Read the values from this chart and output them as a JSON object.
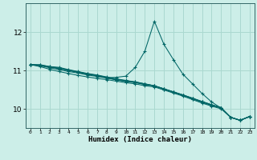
{
  "xlabel": "Humidex (Indice chaleur)",
  "ylabel": "",
  "background_color": "#cceee8",
  "grid_color": "#aad8d0",
  "line_color": "#006666",
  "xlim": [
    -0.5,
    23.5
  ],
  "ylim": [
    9.5,
    12.75
  ],
  "yticks": [
    10,
    11,
    12
  ],
  "xticks": [
    0,
    1,
    2,
    3,
    4,
    5,
    6,
    7,
    8,
    9,
    10,
    11,
    12,
    13,
    14,
    15,
    16,
    17,
    18,
    19,
    20,
    21,
    22,
    23
  ],
  "series": [
    [
      11.15,
      11.15,
      11.1,
      11.08,
      11.02,
      10.97,
      10.92,
      10.88,
      10.83,
      10.78,
      10.74,
      10.7,
      10.65,
      10.6,
      10.52,
      10.44,
      10.36,
      10.27,
      10.19,
      10.1,
      10.03,
      9.78,
      9.7,
      9.8
    ],
    [
      11.15,
      11.14,
      11.1,
      11.06,
      11.01,
      10.96,
      10.91,
      10.87,
      10.82,
      10.77,
      10.73,
      10.7,
      10.65,
      10.6,
      10.52,
      10.44,
      10.36,
      10.28,
      10.19,
      10.11,
      10.03,
      9.78,
      9.7,
      9.8
    ],
    [
      11.15,
      11.13,
      11.09,
      11.05,
      11.0,
      10.95,
      10.9,
      10.86,
      10.81,
      10.76,
      10.72,
      10.69,
      10.64,
      10.6,
      10.52,
      10.44,
      10.36,
      10.27,
      10.18,
      10.1,
      10.03,
      9.78,
      9.7,
      9.8
    ],
    [
      11.15,
      11.12,
      11.07,
      11.02,
      10.97,
      10.93,
      10.88,
      10.84,
      10.8,
      10.75,
      10.71,
      10.68,
      10.63,
      10.59,
      10.51,
      10.43,
      10.35,
      10.26,
      10.17,
      10.09,
      10.02,
      9.78,
      9.7,
      9.8
    ],
    [
      11.15,
      11.1,
      11.03,
      10.97,
      10.92,
      10.87,
      10.83,
      10.79,
      10.76,
      10.72,
      10.68,
      10.65,
      10.6,
      10.57,
      10.49,
      10.41,
      10.33,
      10.24,
      10.15,
      10.07,
      10.0,
      9.78,
      9.7,
      9.8
    ],
    [
      11.15,
      11.13,
      11.09,
      11.05,
      11.0,
      10.95,
      10.9,
      10.86,
      10.81,
      10.82,
      10.85,
      11.08,
      11.5,
      12.28,
      11.68,
      11.28,
      10.9,
      10.65,
      10.4,
      10.18,
      10.02,
      9.78,
      9.7,
      9.8
    ]
  ]
}
